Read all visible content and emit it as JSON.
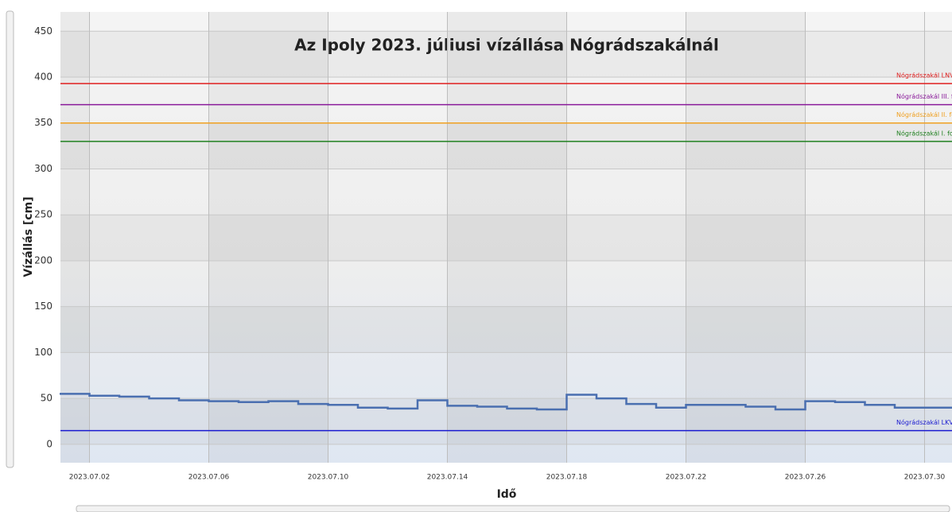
{
  "chart_data": {
    "type": "line",
    "title": "Az Ipoly 2023. júliusi vízállása Nógrádszakálnál",
    "x_label": "Idő",
    "y_label": "Vízállás [cm]",
    "x": [
      "2023.07.01",
      "2023.07.02",
      "2023.07.03",
      "2023.07.04",
      "2023.07.05",
      "2023.07.06",
      "2023.07.07",
      "2023.07.08",
      "2023.07.09",
      "2023.07.10",
      "2023.07.11",
      "2023.07.12",
      "2023.07.13",
      "2023.07.14",
      "2023.07.15",
      "2023.07.16",
      "2023.07.17",
      "2023.07.18",
      "2023.07.19",
      "2023.07.20",
      "2023.07.21",
      "2023.07.22",
      "2023.07.23",
      "2023.07.24",
      "2023.07.25",
      "2023.07.26",
      "2023.07.27",
      "2023.07.28",
      "2023.07.29",
      "2023.07.30",
      "2023.07.31"
    ],
    "series": [
      {
        "name": "Vízállás",
        "color": "#4a6fb0",
        "values": [
          55,
          53,
          52,
          50,
          48,
          47,
          46,
          47,
          44,
          43,
          40,
          39,
          48,
          42,
          41,
          39,
          38,
          54,
          50,
          44,
          40,
          43,
          43,
          41,
          38,
          47,
          46,
          43,
          40,
          40,
          44
        ]
      }
    ],
    "reference_lines": [
      {
        "name": "Nógrádszakál LNV",
        "value": 393,
        "color": "#e02020"
      },
      {
        "name": "Nógrádszakál III. fok",
        "value": 370,
        "color": "#8a1a9a"
      },
      {
        "name": "Nógrádszakál II. fok",
        "value": 350,
        "color": "#f0a020"
      },
      {
        "name": "Nógrádszakál I. fok",
        "value": 330,
        "color": "#208020"
      },
      {
        "name": "Nógrádszakál LKV",
        "value": 15,
        "color": "#1a1ad0"
      }
    ],
    "xlim": [
      "2023.07.01",
      "2023.07.31"
    ],
    "xticks": [
      "2023.07.02",
      "2023.07.06",
      "2023.07.10",
      "2023.07.14",
      "2023.07.18",
      "2023.07.22",
      "2023.07.26",
      "2023.07.30"
    ],
    "ylim": [
      -20,
      471
    ],
    "yticks": [
      0,
      50,
      100,
      150,
      200,
      250,
      300,
      350,
      400,
      450
    ],
    "grid": true
  }
}
